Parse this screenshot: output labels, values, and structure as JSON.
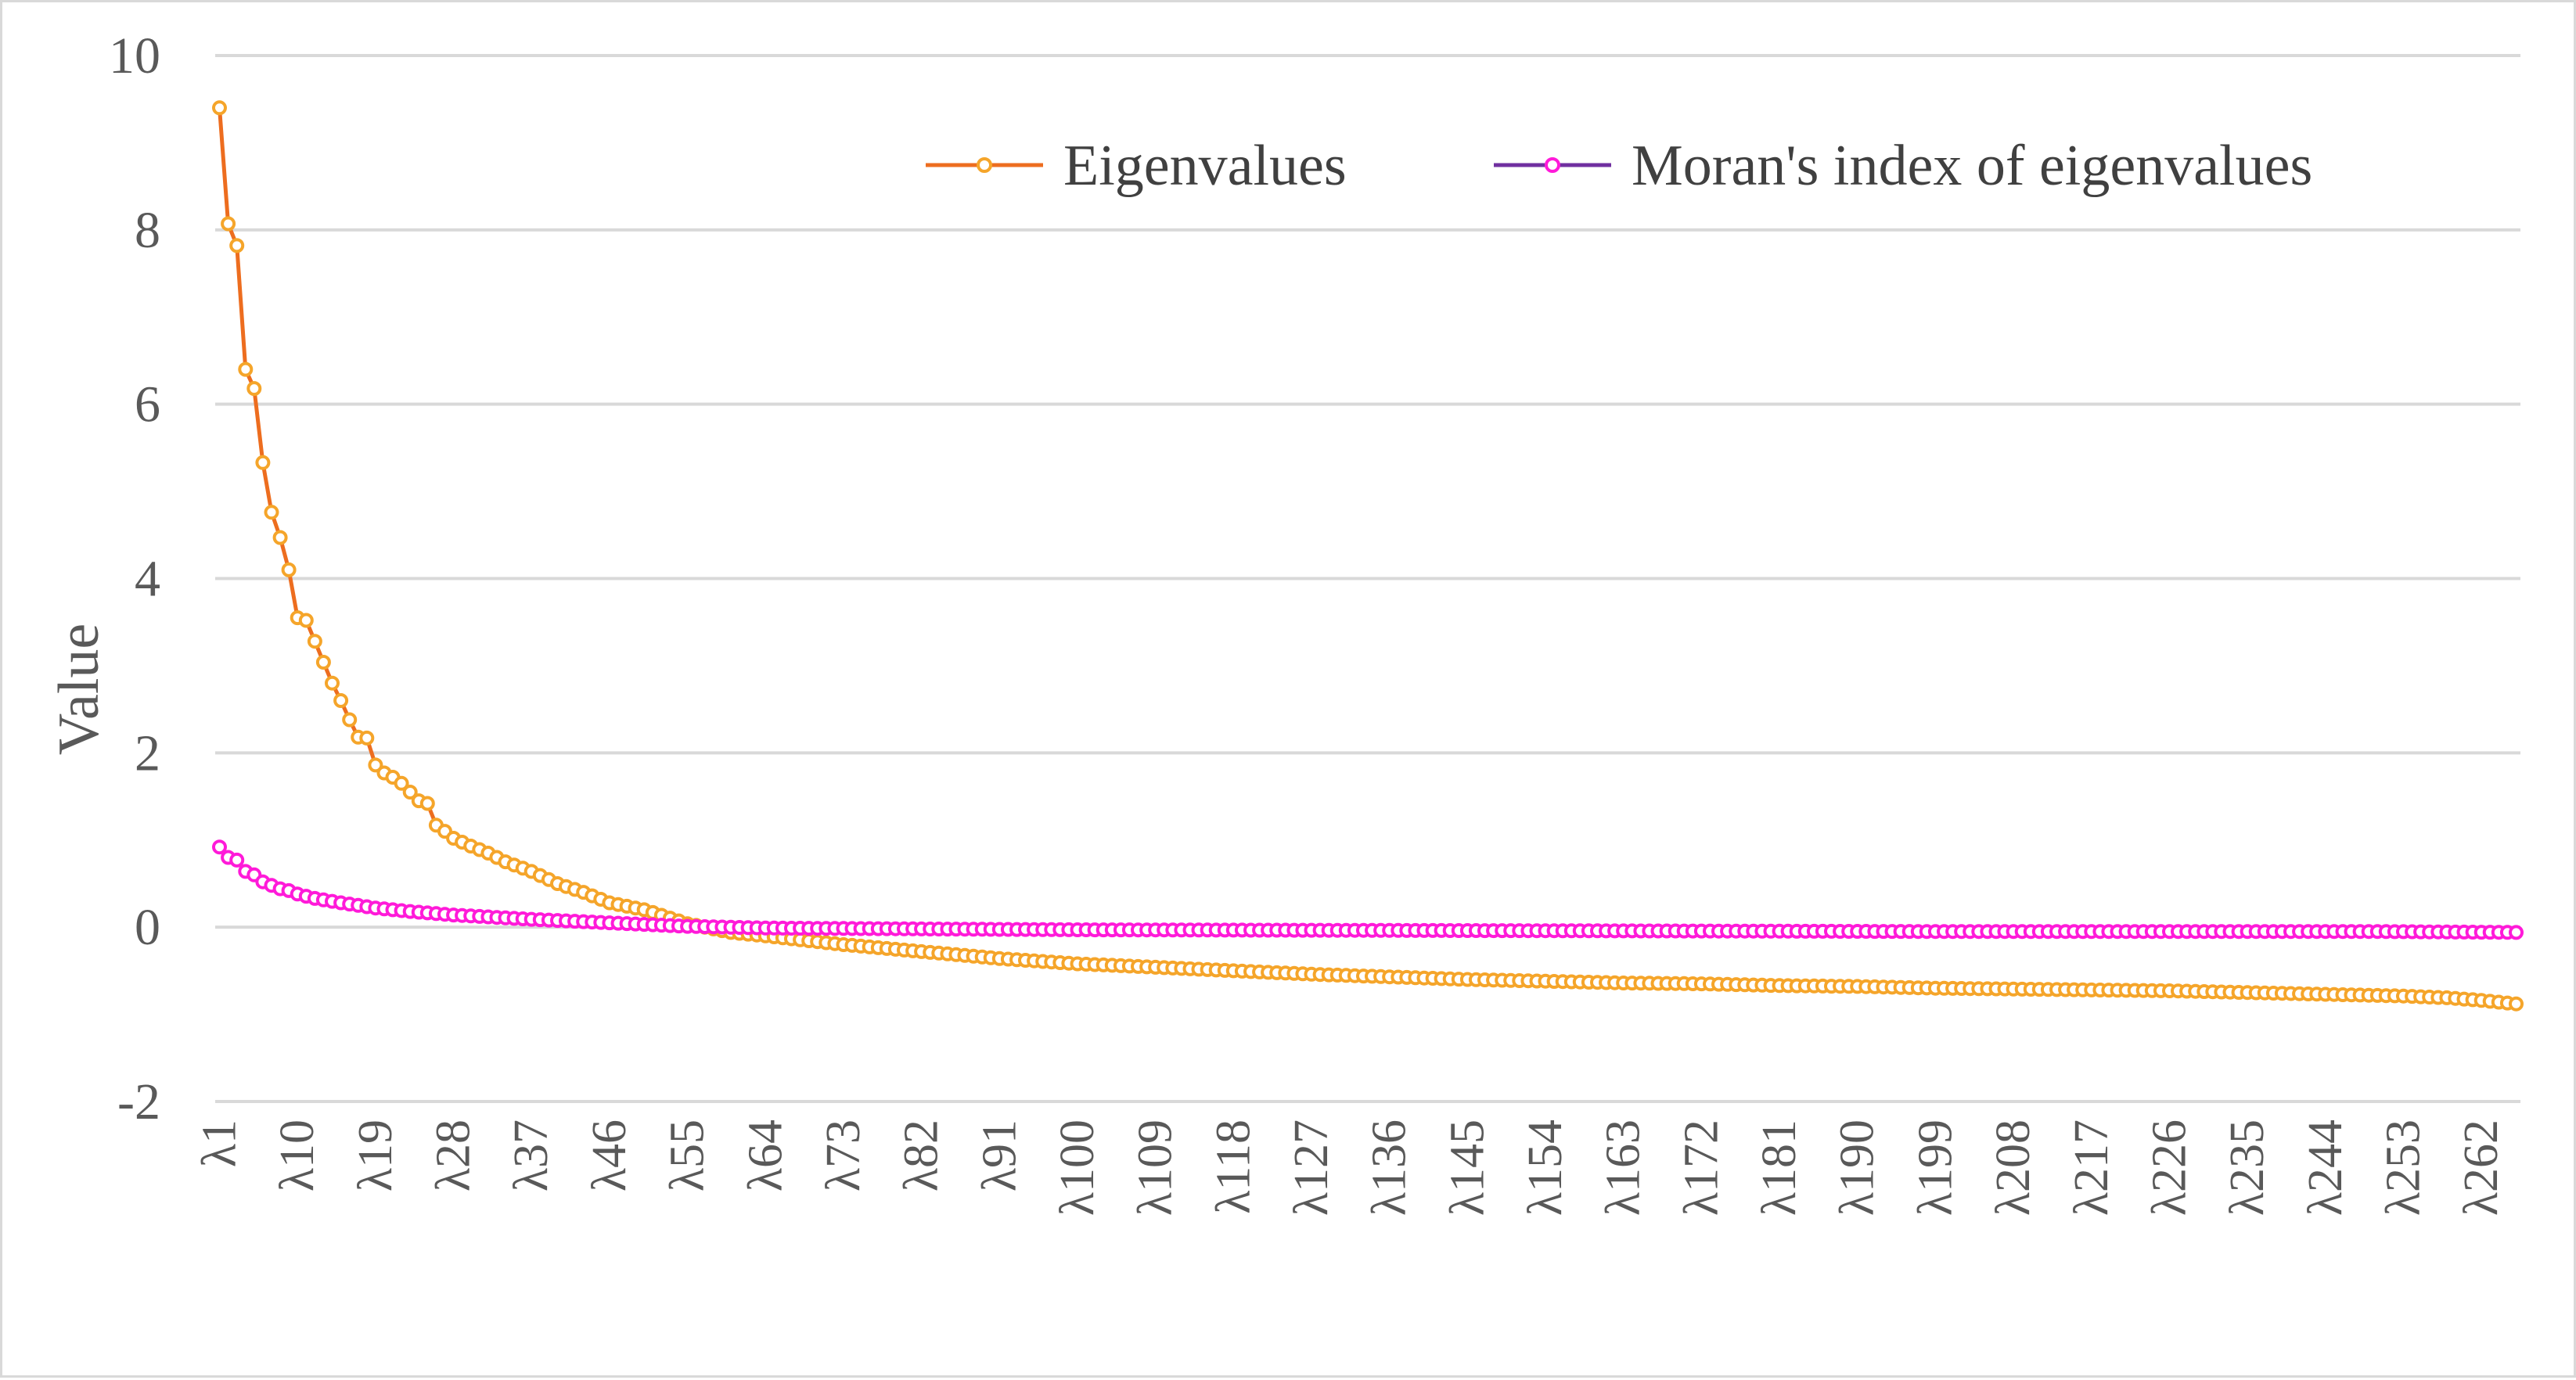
{
  "chart_data": {
    "type": "line",
    "title": "",
    "xlabel": "",
    "ylabel": "Value",
    "ylim": [
      -2,
      10
    ],
    "yticks": [
      "10",
      "8",
      "6",
      "4",
      "2",
      "0",
      "-2"
    ],
    "x_tick_labels": [
      "λ1",
      "λ10",
      "λ19",
      "λ28",
      "λ37",
      "λ46",
      "λ55",
      "λ64",
      "λ73",
      "λ82",
      "λ91",
      "λ100",
      "λ109",
      "λ118",
      "λ127",
      "λ136",
      "λ145",
      "λ154",
      "λ163",
      "λ172",
      "λ181",
      "λ190",
      "λ199",
      "λ208",
      "λ217",
      "λ226",
      "λ235",
      "λ244",
      "λ253",
      "λ262"
    ],
    "n_points": 266,
    "grid": true,
    "legend_position": "top-right",
    "series": [
      {
        "name": "Eigenvalues",
        "color": "#f5a52a",
        "line_color": "#ed6d1f",
        "key_points": [
          [
            1,
            9.4
          ],
          [
            2,
            8.07
          ],
          [
            3,
            7.82
          ],
          [
            4,
            6.4
          ],
          [
            5,
            6.18
          ],
          [
            6,
            5.33
          ],
          [
            7,
            4.76
          ],
          [
            8,
            4.47
          ],
          [
            9,
            4.1
          ],
          [
            10,
            3.55
          ],
          [
            11,
            3.52
          ],
          [
            12,
            3.28
          ],
          [
            13,
            3.04
          ],
          [
            14,
            2.8
          ],
          [
            15,
            2.6
          ],
          [
            16,
            2.38
          ],
          [
            17,
            2.18
          ],
          [
            18,
            2.17
          ],
          [
            19,
            1.86
          ],
          [
            20,
            1.77
          ],
          [
            21,
            1.72
          ],
          [
            22,
            1.65
          ],
          [
            23,
            1.55
          ],
          [
            24,
            1.45
          ],
          [
            25,
            1.42
          ],
          [
            26,
            1.17
          ],
          [
            27,
            1.1
          ],
          [
            28,
            1.02
          ],
          [
            30,
            0.93
          ],
          [
            32,
            0.85
          ],
          [
            34,
            0.75
          ],
          [
            37,
            0.64
          ],
          [
            40,
            0.5
          ],
          [
            43,
            0.4
          ],
          [
            46,
            0.28
          ],
          [
            50,
            0.2
          ],
          [
            55,
            0.04
          ],
          [
            60,
            -0.06
          ],
          [
            64,
            -0.1
          ],
          [
            73,
            -0.2
          ],
          [
            82,
            -0.28
          ],
          [
            91,
            -0.36
          ],
          [
            100,
            -0.42
          ],
          [
            109,
            -0.46
          ],
          [
            118,
            -0.5
          ],
          [
            127,
            -0.54
          ],
          [
            136,
            -0.57
          ],
          [
            145,
            -0.6
          ],
          [
            154,
            -0.62
          ],
          [
            163,
            -0.64
          ],
          [
            172,
            -0.65
          ],
          [
            181,
            -0.67
          ],
          [
            190,
            -0.68
          ],
          [
            199,
            -0.7
          ],
          [
            208,
            -0.71
          ],
          [
            217,
            -0.72
          ],
          [
            226,
            -0.73
          ],
          [
            235,
            -0.75
          ],
          [
            244,
            -0.77
          ],
          [
            253,
            -0.79
          ],
          [
            258,
            -0.81
          ],
          [
            262,
            -0.84
          ],
          [
            266,
            -0.88
          ]
        ]
      },
      {
        "name": "Moran's index of eigenvalues",
        "color": "#ff1ad9",
        "line_color": "#7030a0",
        "key_points": [
          [
            1,
            0.92
          ],
          [
            2,
            0.8
          ],
          [
            3,
            0.77
          ],
          [
            4,
            0.64
          ],
          [
            5,
            0.6
          ],
          [
            6,
            0.52
          ],
          [
            7,
            0.48
          ],
          [
            8,
            0.44
          ],
          [
            9,
            0.42
          ],
          [
            10,
            0.38
          ],
          [
            12,
            0.33
          ],
          [
            15,
            0.28
          ],
          [
            19,
            0.22
          ],
          [
            23,
            0.18
          ],
          [
            28,
            0.14
          ],
          [
            37,
            0.09
          ],
          [
            46,
            0.05
          ],
          [
            55,
            0.01
          ],
          [
            64,
            -0.01
          ],
          [
            82,
            -0.02
          ],
          [
            100,
            -0.03
          ],
          [
            150,
            -0.04
          ],
          [
            200,
            -0.05
          ],
          [
            250,
            -0.05
          ],
          [
            266,
            -0.06
          ]
        ]
      }
    ]
  }
}
